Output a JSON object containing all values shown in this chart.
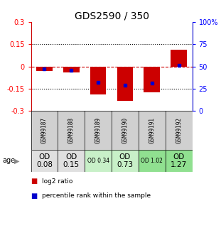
{
  "title": "GDS2590 / 350",
  "samples": [
    "GSM99187",
    "GSM99188",
    "GSM99189",
    "GSM99190",
    "GSM99191",
    "GSM99192"
  ],
  "log2_ratios": [
    -0.03,
    -0.04,
    -0.19,
    -0.23,
    -0.175,
    0.115
  ],
  "percentile_ranks": [
    47,
    46,
    32,
    29,
    31,
    51
  ],
  "ylim": [
    -0.3,
    0.3
  ],
  "yticks_left": [
    -0.3,
    -0.15,
    0,
    0.15,
    0.3
  ],
  "yticks_right": [
    0,
    25,
    50,
    75,
    100
  ],
  "bar_color": "#cc0000",
  "percentile_color": "#0000cc",
  "zero_line_color": "#cc0000",
  "grid_color": "#000000",
  "age_row": [
    "OD\n0.08",
    "OD\n0.15",
    "OD 0.34",
    "OD\n0.73",
    "OD 1.02",
    "OD\n1.27"
  ],
  "age_fontsize_large": [
    true,
    true,
    false,
    true,
    false,
    true
  ],
  "age_bg_colors": [
    "#e0e0e0",
    "#e0e0e0",
    "#c8f0c8",
    "#c8f0c8",
    "#90e090",
    "#90e090"
  ],
  "sample_bg_color": "#d0d0d0",
  "background_color": "#ffffff",
  "title_fontsize": 10,
  "bar_width": 0.6,
  "left_spine_color": "#cc0000",
  "right_spine_color": "#0000cc"
}
